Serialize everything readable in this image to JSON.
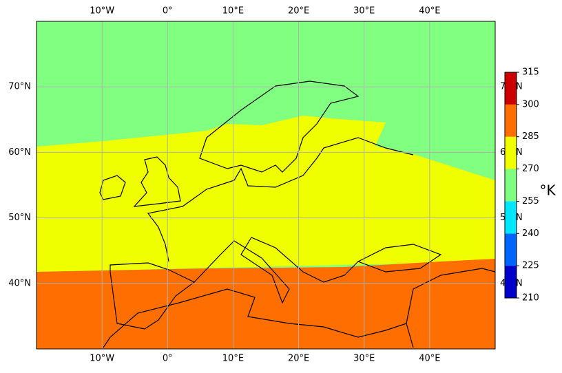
{
  "chart_data": {
    "type": "map",
    "xlim": [
      -20,
      50
    ],
    "ylim": [
      30,
      80
    ],
    "xticks": [
      {
        "value": -10,
        "label": "10°W"
      },
      {
        "value": 0,
        "label": "0°"
      },
      {
        "value": 10,
        "label": "10°E"
      },
      {
        "value": 20,
        "label": "20°E"
      },
      {
        "value": 30,
        "label": "30°E"
      },
      {
        "value": 40,
        "label": "40°E"
      }
    ],
    "yticks": [
      {
        "value": 40,
        "label": "40°N"
      },
      {
        "value": 50,
        "label": "50°N"
      },
      {
        "value": 60,
        "label": "60°N"
      },
      {
        "value": 70,
        "label": "70°N"
      }
    ],
    "grid": true,
    "colorbar": {
      "label": "°K",
      "ticks": [
        210,
        225,
        240,
        255,
        270,
        285,
        300,
        315
      ],
      "colors": [
        "#0000c8",
        "#0064ff",
        "#00e6ff",
        "#80ff80",
        "#f0ff00",
        "#ff6e00",
        "#cc0000"
      ]
    }
  }
}
